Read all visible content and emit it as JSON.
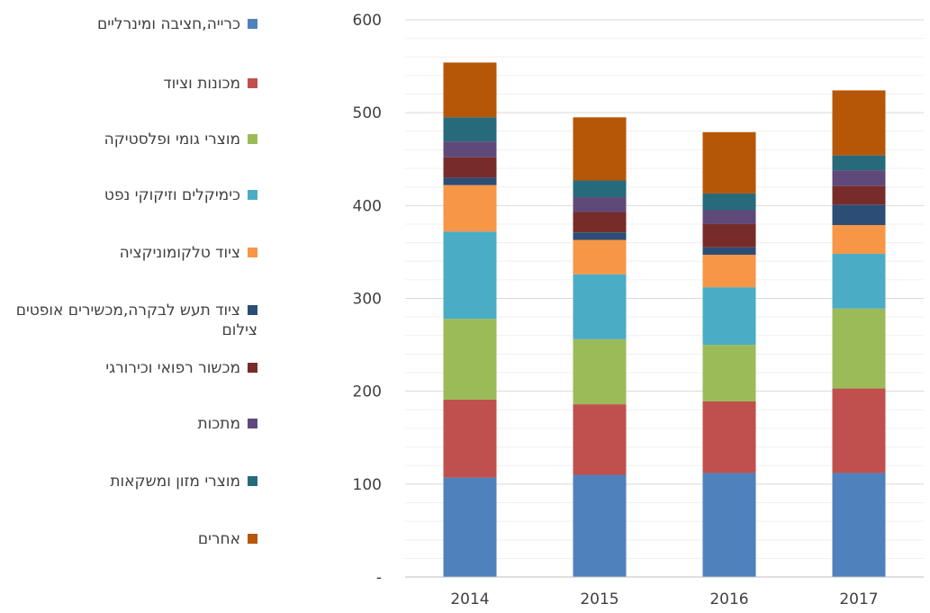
{
  "chart_data": {
    "type": "bar",
    "stacked": true,
    "categories": [
      "2014",
      "2015",
      "2016",
      "2017"
    ],
    "ylim": [
      0,
      600
    ],
    "yticks": [
      0,
      100,
      200,
      300,
      400,
      500,
      600
    ],
    "ytick_labels": [
      "-",
      "100",
      "200",
      "300",
      "400",
      "500",
      "600"
    ],
    "grid": true,
    "legend_position": "left",
    "series": [
      {
        "name": "כרייה,חציבה ומינרליים",
        "color": "#4F81BD",
        "values": [
          107,
          110,
          112,
          112
        ]
      },
      {
        "name": "מכונות וציוד",
        "color": "#C0504D",
        "values": [
          84,
          76,
          77,
          91
        ]
      },
      {
        "name": "מוצרי גומי  ופלסטיקה",
        "color": "#9BBB59",
        "values": [
          87,
          70,
          61,
          86
        ]
      },
      {
        "name": "כימיקלים וזיקוקי נפט",
        "color": "#4BACC6",
        "values": [
          94,
          70,
          62,
          59
        ]
      },
      {
        "name": "ציוד טלקומוניקציה",
        "color": "#F79646",
        "values": [
          50,
          37,
          35,
          31
        ]
      },
      {
        "name": "ציוד תעש לבקרה,מכשירים אופטים צילום",
        "color": "#2C4D75",
        "values": [
          8,
          8,
          8,
          22
        ]
      },
      {
        "name": "מכשור רפואי וכירורגי",
        "color": "#772C2A",
        "values": [
          22,
          22,
          25,
          20
        ]
      },
      {
        "name": "מתכות",
        "color": "#5F497A",
        "values": [
          17,
          16,
          15,
          17
        ]
      },
      {
        "name": "מוצרי מזון ומשקאות",
        "color": "#276A7C",
        "values": [
          26,
          18,
          18,
          16
        ]
      },
      {
        "name": "אחרים",
        "color": "#B65708",
        "values": [
          59,
          68,
          66,
          70
        ]
      }
    ]
  }
}
